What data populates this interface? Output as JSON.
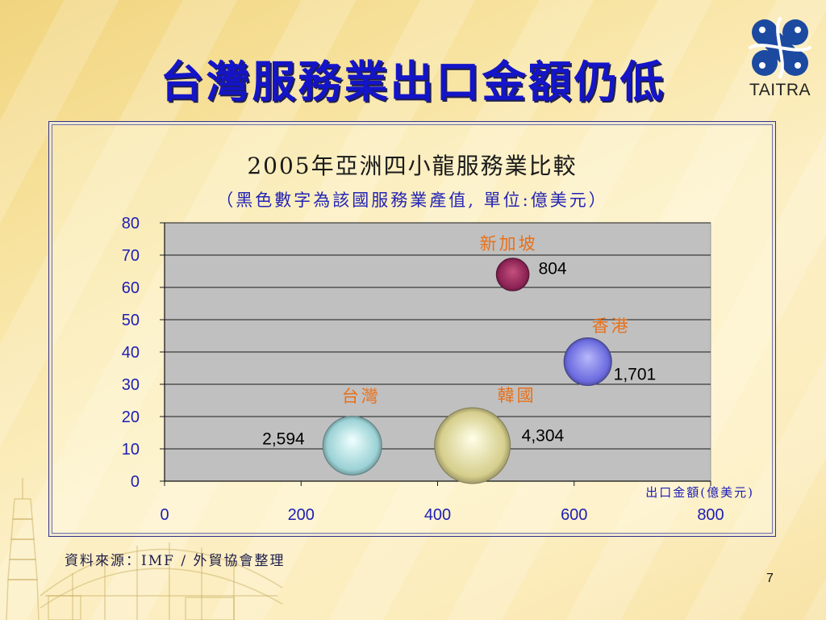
{
  "slide": {
    "title": "台灣服務業出口金額仍低",
    "title_color": "#1414C8",
    "logo_text": "TAITRA",
    "logo_color": "#1B4AA0",
    "source": "資料來源：IMF / 外貿協會整理",
    "page_number": "7"
  },
  "chart_data": {
    "type": "scatter",
    "title": "2005年亞洲四小龍服務業比較",
    "subtitle": "（黑色數字為該國服務業產值, 單位:億美元）",
    "xlabel": "出口金額(億美元)",
    "xlim": [
      0,
      800
    ],
    "ylim": [
      0,
      80
    ],
    "xticks": [
      0,
      200,
      400,
      600,
      800
    ],
    "yticks": [
      80,
      70,
      60,
      50,
      40,
      30,
      20,
      10,
      0
    ],
    "grid": "horizontal",
    "plot_background": "#C0C0C0",
    "label_color": "#E8701A",
    "axis_text_color": "#1E1EB4",
    "points": [
      {
        "name": "新加坡",
        "x": 510,
        "y": 64,
        "size": 804,
        "size_label": "804",
        "color": "#8C2355",
        "highlight": "#C4507E"
      },
      {
        "name": "香港",
        "x": 620,
        "y": 37,
        "size": 1701,
        "size_label": "1,701",
        "color": "#6C6CE0",
        "highlight": "#B8B8FA"
      },
      {
        "name": "台灣",
        "x": 275,
        "y": 11,
        "size": 2594,
        "size_label": "2,594",
        "color": "#9CD2D6",
        "highlight": "#F0FFFF"
      },
      {
        "name": "韓國",
        "x": 451,
        "y": 11,
        "size": 4304,
        "size_label": "4,304",
        "color": "#D6CE8C",
        "highlight": "#FFFFE8"
      }
    ]
  }
}
